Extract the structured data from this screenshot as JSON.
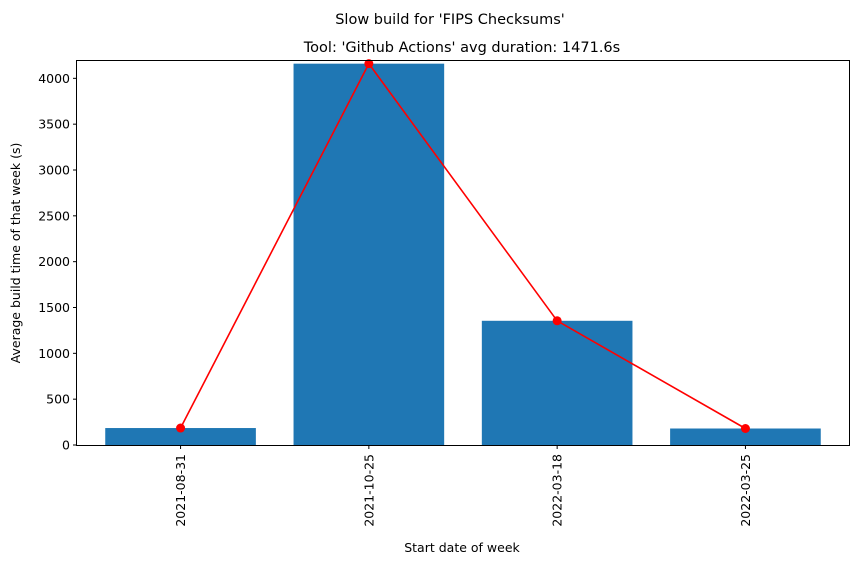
{
  "chart_data": {
    "type": "bar",
    "suptitle": "Slow build for 'FIPS Checksums'",
    "title": "Tool: 'Github Actions' avg duration: 1471.6s",
    "xlabel": "Start date of week",
    "ylabel": "Average build time of that week (s)",
    "categories": [
      "2021-08-31",
      "2021-10-25",
      "2022-03-18",
      "2022-03-25"
    ],
    "values": [
      185,
      4160,
      1355,
      180
    ],
    "line_values": [
      185,
      4160,
      1355,
      180
    ],
    "ylim": [
      0,
      4200
    ],
    "yticks": [
      0,
      500,
      1000,
      1500,
      2000,
      2500,
      3000,
      3500,
      4000
    ],
    "grid": false,
    "bar_color": "#1f77b4",
    "line_color": "#ff0000"
  }
}
